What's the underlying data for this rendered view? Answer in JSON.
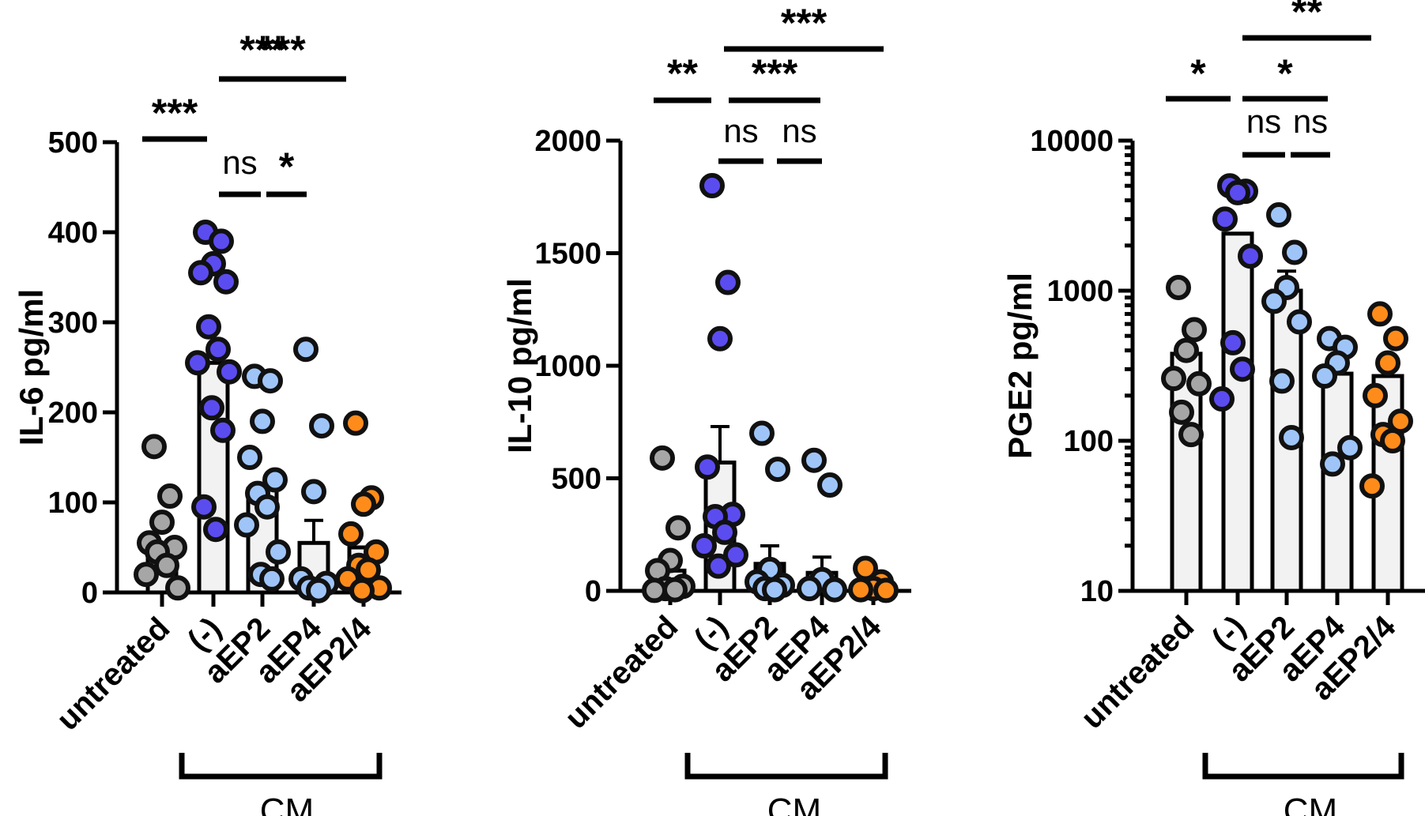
{
  "chart_data": [
    {
      "type": "bar",
      "ylabel": "IL-6 pg/ml",
      "yscale": "linear",
      "ylim": [
        0,
        500
      ],
      "yticks": [
        0,
        100,
        200,
        300,
        400,
        500
      ],
      "ytick_labels": [
        "0",
        "100",
        "200",
        "300",
        "400",
        "500"
      ],
      "categories": [
        "untreated",
        "(-)",
        "aEP2",
        "aEP4",
        "aEP2/4"
      ],
      "group_label": "CM",
      "colors": [
        "#a6a6a6",
        "#5b4cf0",
        "#9fc5f8",
        "#9fc5f8",
        "#ff8c1a"
      ],
      "means": [
        50,
        255,
        115,
        55,
        50
      ],
      "errors": [
        0,
        0,
        0,
        25,
        0
      ],
      "points": [
        [
          162,
          107,
          78,
          55,
          50,
          45,
          30,
          20,
          5
        ],
        [
          400,
          390,
          365,
          355,
          345,
          295,
          270,
          255,
          245,
          205,
          180,
          95,
          70
        ],
        [
          240,
          235,
          190,
          150,
          125,
          110,
          95,
          75,
          45,
          20,
          15
        ],
        [
          270,
          185,
          112,
          15,
          10,
          5,
          2
        ],
        [
          188,
          105,
          98,
          65,
          45,
          30,
          25,
          15,
          5,
          2
        ]
      ],
      "annotations": [
        {
          "from": 0,
          "to": 1,
          "label": "***"
        },
        {
          "from": 1,
          "to": 2.8,
          "label": "***"
        },
        {
          "from": 1,
          "to": 3.7,
          "label": "***"
        },
        {
          "from": 1,
          "to": 2,
          "label": "ns"
        },
        {
          "from": 2,
          "to": 3,
          "label": "*"
        }
      ]
    },
    {
      "type": "bar",
      "ylabel": "IL-10 pg/ml",
      "yscale": "linear",
      "ylim": [
        0,
        2000
      ],
      "yticks": [
        0,
        500,
        1000,
        1500,
        2000
      ],
      "ytick_labels": [
        "0",
        "500",
        "1000",
        "1500",
        "2000"
      ],
      "categories": [
        "untreated",
        "(-)",
        "aEP2",
        "aEP4",
        "aEP2/4"
      ],
      "group_label": "CM",
      "colors": [
        "#a6a6a6",
        "#5b4cf0",
        "#9fc5f8",
        "#9fc5f8",
        "#ff8c1a"
      ],
      "means": [
        90,
        570,
        120,
        80,
        30
      ],
      "errors": [
        0,
        160,
        80,
        70,
        0
      ],
      "points": [
        [
          590,
          280,
          135,
          90,
          20,
          10,
          5,
          2
        ],
        [
          1800,
          1370,
          1120,
          550,
          340,
          330,
          260,
          200,
          160,
          110
        ],
        [
          700,
          540,
          95,
          40,
          25,
          10,
          5
        ],
        [
          580,
          470,
          50,
          10,
          5
        ],
        [
          100,
          40,
          10,
          5,
          2
        ]
      ],
      "annotations": [
        {
          "from": 0,
          "to": 1,
          "label": "**"
        },
        {
          "from": 1,
          "to": 2.6,
          "label": "***"
        },
        {
          "from": 1,
          "to": 4,
          "label": "***"
        },
        {
          "from": 1,
          "to": 2,
          "label": "ns"
        },
        {
          "from": 2,
          "to": 3,
          "label": "ns"
        }
      ]
    },
    {
      "type": "bar",
      "ylabel": "PGE2 pg/ml",
      "yscale": "log",
      "ylim": [
        10,
        10000
      ],
      "yticks": [
        10,
        100,
        1000,
        10000
      ],
      "ytick_labels": [
        "10",
        "100",
        "1000",
        "10000"
      ],
      "categories": [
        "untreated",
        "(-)",
        "aEP2",
        "aEP4",
        "aEP2/4"
      ],
      "group_label": "CM",
      "colors": [
        "#a6a6a6",
        "#5b4cf0",
        "#9fc5f8",
        "#9fc5f8",
        "#ff8c1a"
      ],
      "means": [
        380,
        2400,
        1000,
        280,
        270
      ],
      "errors": [
        0,
        0,
        350,
        0,
        0
      ],
      "points": [
        [
          1050,
          550,
          400,
          260,
          240,
          155,
          110
        ],
        [
          5000,
          4600,
          4500,
          3000,
          1700,
          450,
          300,
          190
        ],
        [
          3200,
          1800,
          1050,
          850,
          620,
          250,
          105
        ],
        [
          480,
          420,
          330,
          270,
          90,
          70
        ],
        [
          700,
          480,
          330,
          200,
          135,
          110,
          100,
          50
        ]
      ],
      "annotations": [
        {
          "from": 0,
          "to": 1,
          "label": "*"
        },
        {
          "from": 1,
          "to": 2,
          "label": "*"
        },
        {
          "from": 1,
          "to": 3.5,
          "label": "**"
        },
        {
          "from": 1,
          "to": 2,
          "label": "ns"
        },
        {
          "from": 2,
          "to": 3,
          "label": "ns"
        }
      ]
    }
  ]
}
